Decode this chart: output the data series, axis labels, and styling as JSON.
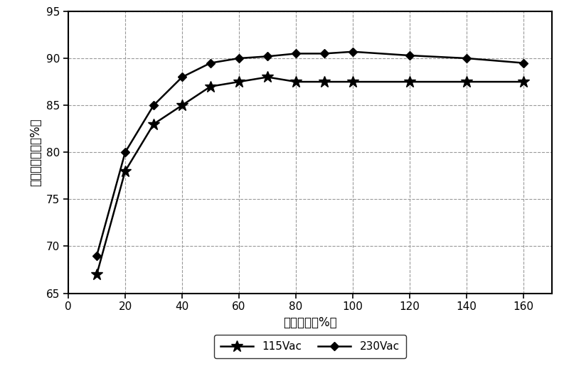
{
  "series_115": {
    "x": [
      10,
      20,
      30,
      40,
      50,
      60,
      70,
      80,
      90,
      100,
      120,
      140,
      160
    ],
    "y": [
      67,
      78,
      83,
      85,
      87,
      87.5,
      88,
      87.5,
      87.5,
      87.5,
      87.5,
      87.5,
      87.5
    ],
    "label": "115Vac",
    "color": "#000000",
    "marker": "*",
    "markersize": 12
  },
  "series_230": {
    "x": [
      10,
      20,
      30,
      40,
      50,
      60,
      70,
      80,
      90,
      100,
      120,
      140,
      160
    ],
    "y": [
      69,
      80,
      85,
      88,
      89.5,
      90,
      90.2,
      90.5,
      90.5,
      90.7,
      90.3,
      90,
      89.5
    ],
    "label": "230Vac",
    "color": "#000000",
    "marker": "D",
    "markersize": 6
  },
  "xlabel": "电源负载（%）",
  "ylabel": "电源转换效率（%）",
  "xlim": [
    0,
    170
  ],
  "ylim": [
    65,
    95
  ],
  "xticks": [
    0,
    20,
    40,
    60,
    80,
    100,
    120,
    140,
    160
  ],
  "yticks": [
    65,
    70,
    75,
    80,
    85,
    90,
    95
  ],
  "grid_color": "#999999",
  "background_color": "#ffffff",
  "linewidth": 1.8
}
